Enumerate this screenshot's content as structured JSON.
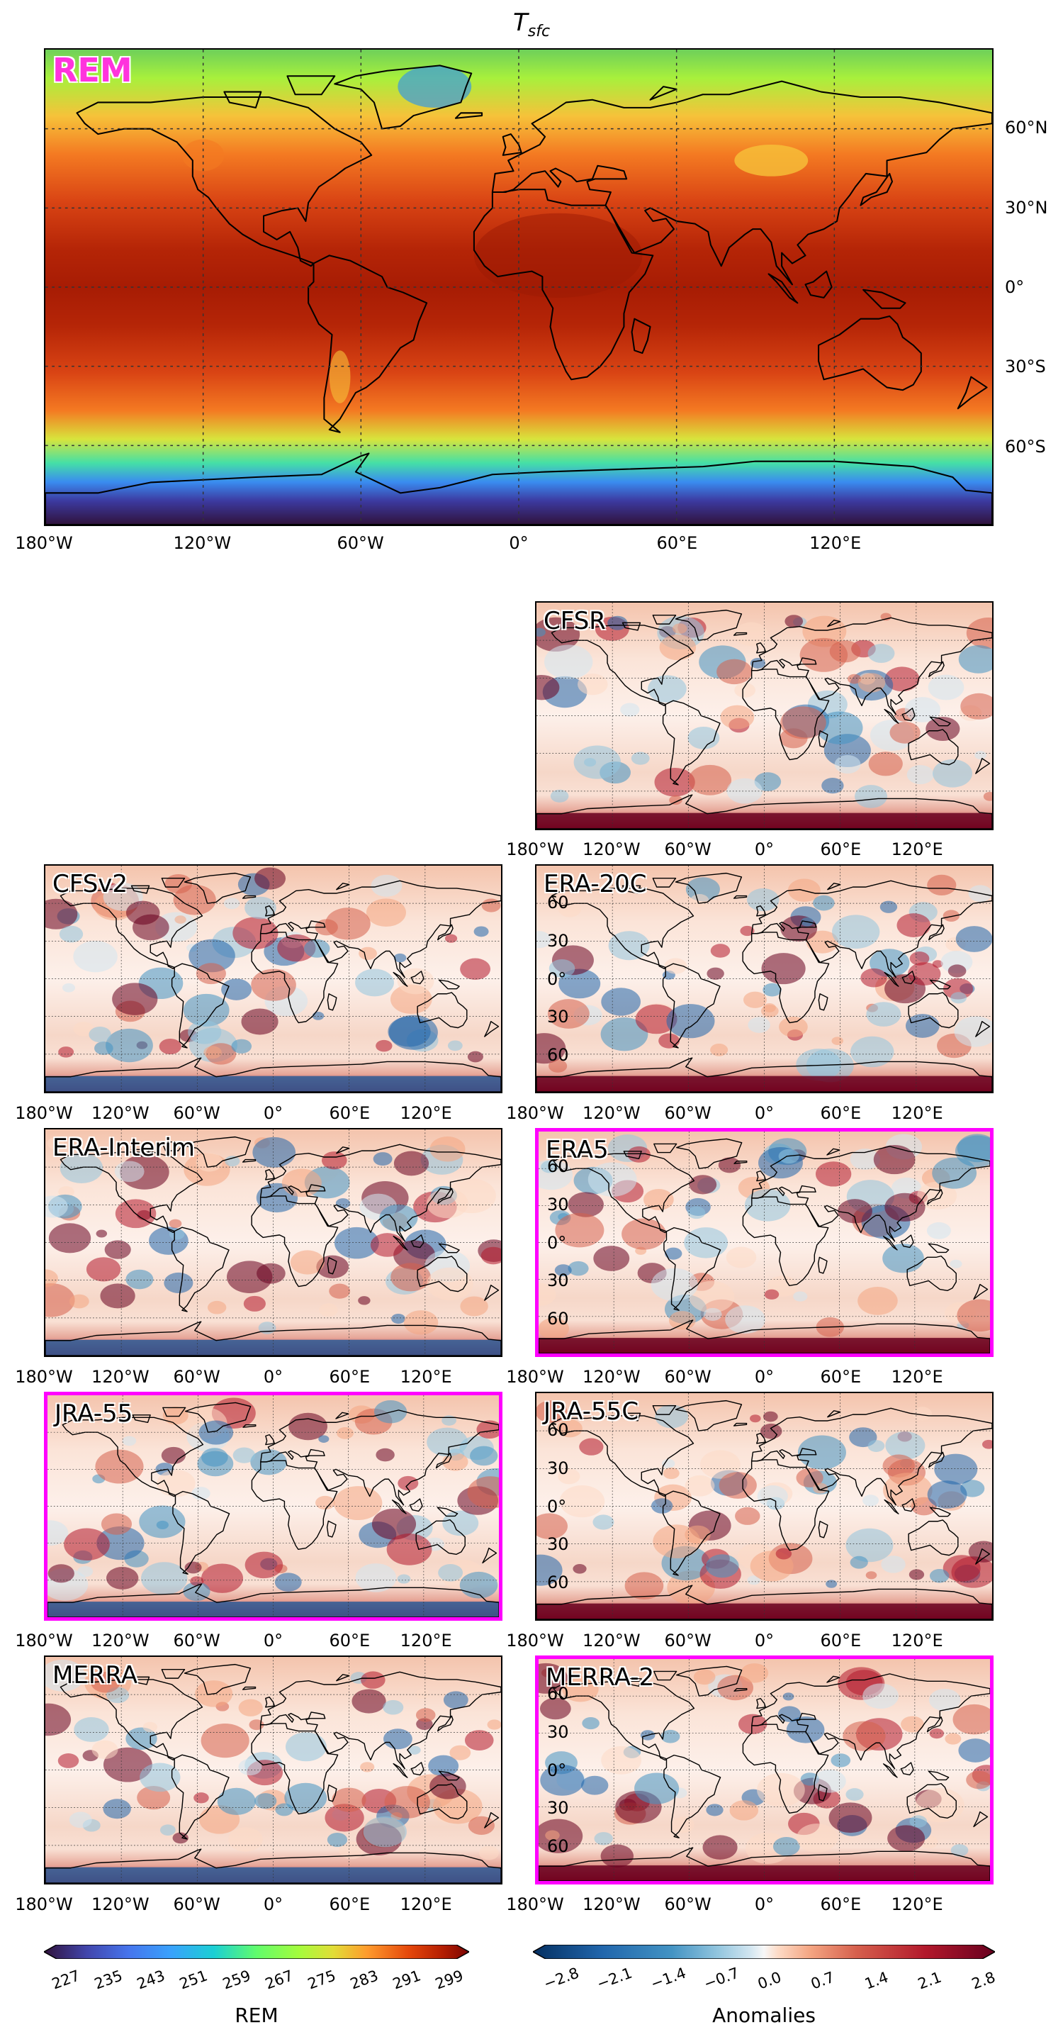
{
  "figure": {
    "title_main": "T",
    "title_sub": "sfc"
  },
  "colors": {
    "highlight": "#ff00ff",
    "rem_label": "#ff33dd",
    "sequential_map": "turbo-like (dark purple to dark red)",
    "diverging_map": "RdBu_r (dark blue to dark red)"
  },
  "chart_data": [
    {
      "type": "heatmap",
      "panel": "REM",
      "title": "REM",
      "highlighted": false,
      "x_ticks": [
        "180°W",
        "120°W",
        "60°W",
        "0°",
        "60°E",
        "120°E"
      ],
      "y_ticks": [
        "60°N",
        "30°N",
        "0°",
        "30°S",
        "60°S"
      ],
      "colorbar": "REM",
      "zlim": [
        227,
        299
      ],
      "grid": true
    },
    {
      "type": "heatmap",
      "panel": "CFSR",
      "title": "CFSR",
      "highlighted": false,
      "colorbar": "Anomalies",
      "zlim": [
        -2.8,
        2.8
      ],
      "grid": true
    },
    {
      "type": "heatmap",
      "panel": "CFSv2",
      "title": "CFSv2",
      "highlighted": false,
      "colorbar": "Anomalies",
      "zlim": [
        -2.8,
        2.8
      ],
      "grid": true
    },
    {
      "type": "heatmap",
      "panel": "ERA-20C",
      "title": "ERA-20C",
      "highlighted": false,
      "colorbar": "Anomalies",
      "zlim": [
        -2.8,
        2.8
      ],
      "grid": true
    },
    {
      "type": "heatmap",
      "panel": "ERA-Interim",
      "title": "ERA-Interim",
      "highlighted": false,
      "colorbar": "Anomalies",
      "zlim": [
        -2.8,
        2.8
      ],
      "grid": true
    },
    {
      "type": "heatmap",
      "panel": "ERA5",
      "title": "ERA5",
      "highlighted": true,
      "colorbar": "Anomalies",
      "zlim": [
        -2.8,
        2.8
      ],
      "grid": true
    },
    {
      "type": "heatmap",
      "panel": "JRA-55",
      "title": "JRA-55",
      "highlighted": true,
      "colorbar": "Anomalies",
      "zlim": [
        -2.8,
        2.8
      ],
      "grid": true
    },
    {
      "type": "heatmap",
      "panel": "JRA-55C",
      "title": "JRA-55C",
      "highlighted": false,
      "colorbar": "Anomalies",
      "zlim": [
        -2.8,
        2.8
      ],
      "grid": true
    },
    {
      "type": "heatmap",
      "panel": "MERRA",
      "title": "MERRA",
      "highlighted": false,
      "colorbar": "Anomalies",
      "zlim": [
        -2.8,
        2.8
      ],
      "grid": true
    },
    {
      "type": "heatmap",
      "panel": "MERRA-2",
      "title": "MERRA-2",
      "highlighted": true,
      "colorbar": "Anomalies",
      "zlim": [
        -2.8,
        2.8
      ],
      "grid": true
    }
  ],
  "small_x_ticks": [
    "180°W",
    "120°W",
    "60°W",
    "0°",
    "60°E",
    "120°E"
  ],
  "small_y_ticks": [
    "60",
    "30",
    "0°",
    "30",
    "60"
  ],
  "colorbar_rem": {
    "label": "REM",
    "ticks": [
      "227",
      "235",
      "243",
      "251",
      "259",
      "267",
      "275",
      "283",
      "291",
      "299"
    ]
  },
  "colorbar_anom": {
    "label": "Anomalies",
    "ticks": [
      "−2.8",
      "−2.1",
      "−1.4",
      "−0.7",
      "0.0",
      "0.7",
      "1.4",
      "2.1",
      "2.8"
    ]
  }
}
